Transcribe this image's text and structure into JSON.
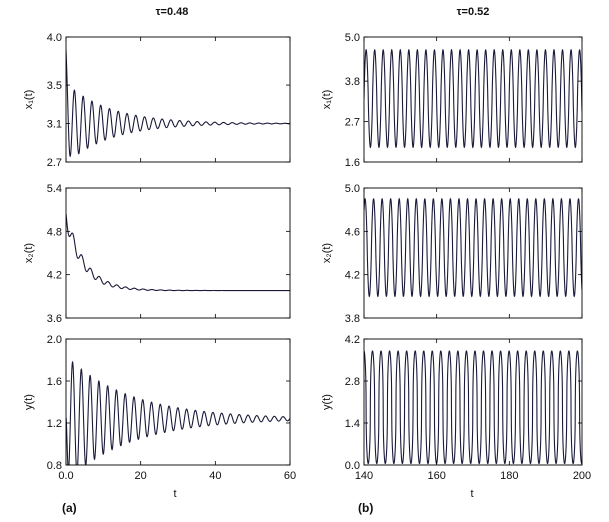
{
  "columns": [
    {
      "title": "τ=0.48",
      "panel_label": "(a)",
      "xlabel": "t"
    },
    {
      "title": "τ=0.52",
      "panel_label": "(b)",
      "xlabel": "t"
    }
  ],
  "chart_data": [
    {
      "type": "line",
      "column": 0,
      "row": 0,
      "ylabel": "x₁(t)",
      "xlim": [
        0,
        60
      ],
      "ylim": [
        2.7,
        4.0
      ],
      "xticks": [],
      "xtick_labels": [],
      "yticks": [
        2.7,
        3.1,
        3.5,
        4.0
      ],
      "ytick_labels": [
        "2.7",
        "3.1",
        "3.5",
        "4.0"
      ],
      "model": {
        "kind": "damped",
        "y0": 3.87,
        "eq": 3.1,
        "amp": 0.42,
        "decay": 0.085,
        "period": 2.35,
        "phase": 0.25
      },
      "series": [
        {
          "name": "x1(t)",
          "color": "#1a1a3a"
        }
      ]
    },
    {
      "type": "line",
      "column": 0,
      "row": 1,
      "ylabel": "x₂(t)",
      "xlim": [
        0,
        60
      ],
      "ylim": [
        3.6,
        5.4
      ],
      "xticks": [],
      "xtick_labels": [],
      "yticks": [
        3.6,
        4.2,
        4.8,
        5.4
      ],
      "ytick_labels": [
        "3.6",
        "4.2",
        "4.8",
        "5.4"
      ],
      "model": {
        "kind": "damped_trend",
        "y0": 5.0,
        "eq": 3.98,
        "trend_amp": 1.0,
        "trend_decay": 0.21,
        "amp": 0.12,
        "decay": 0.13,
        "period": 2.35,
        "phase": 1.2
      },
      "series": [
        {
          "name": "x2(t)",
          "color": "#1a1a3a"
        }
      ]
    },
    {
      "type": "line",
      "column": 0,
      "row": 2,
      "ylabel": "y(t)",
      "xlim": [
        0,
        60
      ],
      "ylim": [
        0.8,
        2.0
      ],
      "xticks": [
        0,
        20,
        40,
        60
      ],
      "xtick_labels": [
        "0.0",
        "20",
        "40",
        "60"
      ],
      "yticks": [
        0.8,
        1.2,
        1.6,
        2.0
      ],
      "ytick_labels": [
        "0.8",
        "1.2",
        "1.6",
        "2.0"
      ],
      "model": {
        "kind": "damped",
        "y0": 1.25,
        "eq": 1.24,
        "amp": 0.6,
        "decay": 0.058,
        "period": 2.35,
        "phase": 1.57
      },
      "series": [
        {
          "name": "y(t)",
          "color": "#1a1a3a"
        }
      ]
    },
    {
      "type": "line",
      "column": 1,
      "row": 0,
      "ylabel": "x₁(t)",
      "xlim": [
        140,
        200
      ],
      "ylim": [
        1.6,
        5.0
      ],
      "xticks": [],
      "xtick_labels": [],
      "yticks": [
        1.6,
        2.7,
        3.8,
        5.0
      ],
      "ytick_labels": [
        "1.6",
        "2.7",
        "3.8",
        "5.0"
      ],
      "model": {
        "kind": "periodic",
        "min": 2.0,
        "max": 4.65,
        "period": 2.35,
        "phase": 0.0,
        "shape": 1.2
      },
      "series": [
        {
          "name": "x1(t)",
          "color": "#1a1a3a"
        }
      ]
    },
    {
      "type": "line",
      "column": 1,
      "row": 1,
      "ylabel": "x₂(t)",
      "xlim": [
        140,
        200
      ],
      "ylim": [
        3.8,
        5.0
      ],
      "xticks": [],
      "xtick_labels": [],
      "yticks": [
        3.8,
        4.2,
        4.6,
        5.0
      ],
      "ytick_labels": [
        "3.8",
        "4.2",
        "4.6",
        "5.0"
      ],
      "model": {
        "kind": "periodic",
        "min": 4.0,
        "max": 4.9,
        "period": 2.35,
        "phase": 0.8,
        "shape": 1.2
      },
      "series": [
        {
          "name": "x2(t)",
          "color": "#1a1a3a"
        }
      ]
    },
    {
      "type": "line",
      "column": 1,
      "row": 2,
      "ylabel": "y(t)",
      "xlim": [
        140,
        200
      ],
      "ylim": [
        0.0,
        4.2
      ],
      "xticks": [
        140,
        160,
        180,
        200
      ],
      "xtick_labels": [
        "140",
        "160",
        "180",
        "200"
      ],
      "yticks": [
        0.0,
        1.4,
        2.8,
        4.2
      ],
      "ytick_labels": [
        "0.0",
        "1.4",
        "2.8",
        "4.2"
      ],
      "model": {
        "kind": "periodic",
        "min": 0.05,
        "max": 3.8,
        "period": 2.35,
        "phase": 1.6,
        "shape": 2.2
      },
      "series": [
        {
          "name": "y(t)",
          "color": "#1a1a3a"
        }
      ]
    }
  ]
}
